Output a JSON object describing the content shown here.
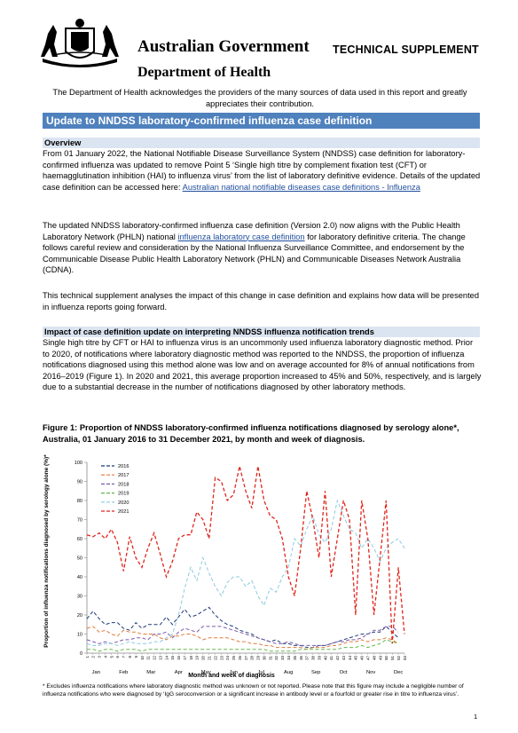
{
  "header": {
    "government": "Australian Government",
    "department": "Department of Health",
    "supplement": "TECHNICAL SUPPLEMENT",
    "acknowledgement": "The Department of Health acknowledges the providers of the many sources of data used in this report and greatly appreciates their contribution."
  },
  "banner": {
    "title": "Update to NNDSS laboratory-confirmed influenza case definition"
  },
  "overview": {
    "heading": "Overview",
    "p1_text": "From 01 January 2022, the National Notifiable Disease Surveillance System (NNDSS) case definition for laboratory-confirmed influenza was updated to remove Point 5 ‘Single high titre by complement fixation test (CFT) or haemagglutination inhibition (HAI) to influenza virus’ from the list of laboratory definitive evidence. Details of the updated case definition can be accessed here: ",
    "p1_link": "Australian national notifiable diseases case definitions - Influenza",
    "p2_text_a": "The updated NNDSS laboratory-confirmed influenza case definition (Version 2.0) now aligns with the Public Health Laboratory Network (PHLN) national ",
    "p2_link": "influenza laboratory case definition",
    "p2_text_b": " for laboratory definitive criteria. The change follows careful review and consideration by the National Influenza Surveillance Committee, and endorsement by the Communicable Disease Public Health Laboratory Network (PHLN) and Communicable Diseases Network Australia (CDNA).",
    "p3": "This technical supplement analyses the impact of this change in case definition and explains how data will be presented in influenza reports going forward."
  },
  "impact": {
    "heading": "Impact of case definition update on interpreting NNDSS influenza notification trends",
    "p1": "Single high titre by CFT or HAI to influenza virus is an uncommonly used influenza laboratory diagnostic method. Prior to 2020, of notifications where laboratory diagnostic method was reported to the NNDSS, the proportion of influenza notifications diagnosed using this method alone was low and on average accounted for 8% of annual notifications from 2016–2019 (Figure 1). In 2020 and 2021, this average proportion increased to 45% and 50%, respectively, and is largely due to a substantial decrease in the number of notifications diagnosed by other laboratory methods."
  },
  "figure": {
    "caption": "Figure 1: Proportion of NNDSS laboratory-confirmed influenza notifications diagnosed by serology alone*, Australia, 01 January 2016 to 31 December 2021, by month and week of diagnosis.",
    "footnote": "* Excludes influenza notifications where laboratory diagnostic method was unknown or not reported. Please note that this figure may include a negligible number of influenza notifications who were diagnosed by ‘IgG seroconversion or a significant increase in antibody level or a fourfold or greater rise in titre to influenza virus’."
  },
  "page_number": "1",
  "chart_data": {
    "type": "line",
    "title": "",
    "xlabel": "Month and week of diagnosis",
    "ylabel": "Proportion of influenza notifications diagnosed by serology alone (%)*",
    "ylim": [
      0,
      100
    ],
    "yticks": [
      0,
      10,
      20,
      30,
      40,
      50,
      60,
      70,
      80,
      90,
      100
    ],
    "xlim": [
      1,
      53
    ],
    "weeks": [
      "1",
      "2",
      "3",
      "4",
      "5",
      "6",
      "7",
      "8",
      "9",
      "10",
      "11",
      "12",
      "13",
      "14",
      "15",
      "16",
      "17",
      "18",
      "19",
      "20",
      "21",
      "22",
      "23",
      "24",
      "25",
      "26",
      "27",
      "28",
      "29",
      "30",
      "31",
      "32",
      "33",
      "34",
      "35",
      "36",
      "37",
      "38",
      "39",
      "40",
      "41",
      "42",
      "43",
      "44",
      "45",
      "46",
      "47",
      "48",
      "49",
      "50",
      "51",
      "52",
      "53"
    ],
    "months": [
      "Jan",
      "Feb",
      "Mar",
      "Apr",
      "May",
      "Jun",
      "Jul",
      "Aug",
      "Sep",
      "Oct",
      "Nov",
      "Dec"
    ],
    "month_centers": [
      2.5,
      7,
      11.5,
      16,
      20.5,
      25,
      29.5,
      34,
      38.5,
      43,
      47.5,
      52
    ],
    "grid": false,
    "legend_position": "top-left",
    "series": [
      {
        "name": "2016",
        "color": "#1f3a78",
        "values": [
          18,
          22,
          18,
          15,
          16,
          16,
          13,
          12,
          16,
          13,
          15,
          15,
          15,
          19,
          15,
          19,
          23,
          19,
          20,
          22,
          24,
          20,
          17,
          15,
          14,
          12,
          11,
          10,
          8,
          7,
          6,
          7,
          5,
          5,
          4,
          4,
          3,
          3,
          4,
          4,
          5,
          6,
          7,
          8,
          9,
          10,
          10,
          11,
          11,
          14,
          11,
          8,
          null
        ]
      },
      {
        "name": "2017",
        "color": "#e07b39",
        "values": [
          13,
          14,
          11,
          12,
          10,
          9,
          12,
          11,
          11,
          10,
          10,
          10,
          8,
          7,
          9,
          9,
          10,
          10,
          9,
          7,
          8,
          8,
          8,
          8,
          7,
          6,
          6,
          5,
          5,
          4,
          4,
          3,
          3,
          3,
          3,
          3,
          2,
          3,
          3,
          3,
          4,
          4,
          5,
          6,
          6,
          7,
          6,
          7,
          7,
          8,
          7,
          5,
          null
        ]
      },
      {
        "name": "2018",
        "color": "#7b5ca8",
        "values": [
          7,
          6,
          5,
          6,
          5,
          6,
          7,
          7,
          8,
          8,
          7,
          10,
          10,
          11,
          8,
          11,
          13,
          12,
          11,
          14,
          14,
          14,
          14,
          13,
          12,
          11,
          10,
          9,
          8,
          7,
          6,
          5,
          5,
          6,
          5,
          4,
          4,
          4,
          4,
          4,
          5,
          6,
          6,
          7,
          7,
          8,
          10,
          12,
          12,
          14,
          14,
          11,
          null
        ]
      },
      {
        "name": "2019",
        "color": "#62b84a",
        "values": [
          2,
          2,
          1,
          2,
          2,
          1,
          2,
          2,
          2,
          1,
          2,
          2,
          2,
          2,
          2,
          2,
          2,
          2,
          2,
          2,
          2,
          2,
          2,
          2,
          2,
          2,
          2,
          2,
          2,
          2,
          1,
          1,
          1,
          1,
          1,
          2,
          2,
          2,
          2,
          2,
          2,
          2,
          3,
          3,
          3,
          4,
          3,
          4,
          5,
          7,
          6,
          5,
          null
        ]
      },
      {
        "name": "2020",
        "color": "#8dc9e0",
        "values": [
          5,
          4,
          4,
          5,
          5,
          4,
          5,
          6,
          5,
          5,
          5,
          6,
          6,
          8,
          10,
          20,
          34,
          45,
          38,
          50,
          42,
          35,
          30,
          37,
          40,
          40,
          35,
          38,
          30,
          25,
          34,
          32,
          40,
          45,
          60,
          56,
          65,
          72,
          62,
          58,
          65,
          80,
          72,
          65,
          63,
          55,
          60,
          55,
          48,
          55,
          58,
          60,
          55
        ]
      },
      {
        "name": "2021",
        "color": "#e0261d",
        "values": [
          62,
          61,
          63,
          60,
          65,
          58,
          43,
          61,
          50,
          45,
          55,
          63,
          52,
          40,
          48,
          60,
          62,
          62,
          74,
          70,
          60,
          92,
          90,
          80,
          83,
          98,
          85,
          76,
          98,
          80,
          72,
          70,
          60,
          40,
          30,
          55,
          85,
          70,
          50,
          85,
          40,
          60,
          80,
          70,
          20,
          80,
          60,
          20,
          50,
          80,
          5,
          45,
          10
        ]
      }
    ]
  }
}
